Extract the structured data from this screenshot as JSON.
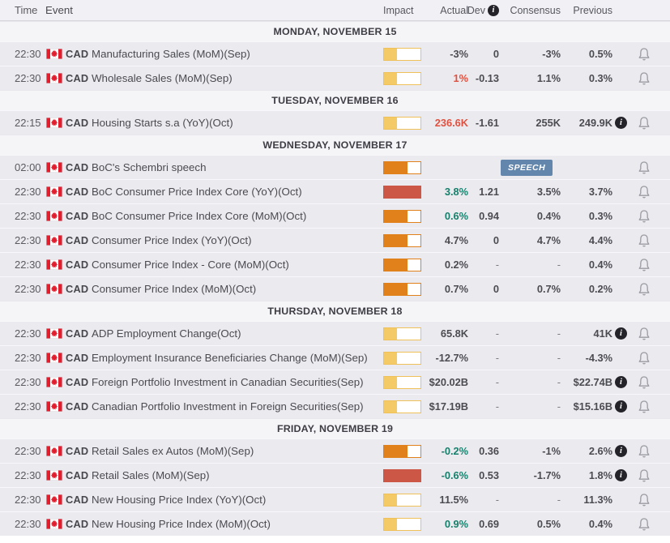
{
  "columns": {
    "time": "Time",
    "event": "Event",
    "impact": "Impact",
    "actual": "Actual",
    "dev": "Dev",
    "consensus": "Consensus",
    "previous": "Previous"
  },
  "icons": {
    "dev_info": "info-icon",
    "previous_info": "info-icon",
    "alert": "bell-icon",
    "flag": "canada-flag-icon",
    "info_glyph": "i"
  },
  "colors": {
    "impact_low_border": "#efc158",
    "impact_low_fill": "#f4ca66",
    "impact_med": "#e0811c",
    "impact_high": "#cd5746",
    "positive": "#17806d",
    "negative": "#e2503f",
    "speech": "#6286ac",
    "row_bg": "#ebebef",
    "day_bg": "#f5f5f8",
    "hdr_bg": "#f1f1f5"
  },
  "groups": [
    {
      "label": "MONDAY, NOVEMBER 15",
      "events": [
        {
          "time": "22:30",
          "currency": "CAD",
          "name": "Manufacturing Sales (MoM)(Sep)",
          "impact": "low",
          "actual": "-3%",
          "actual_color": "neutral",
          "dev": "0",
          "consensus": "-3%",
          "previous": "0.5%",
          "previous_info": false,
          "speech": false
        },
        {
          "time": "22:30",
          "currency": "CAD",
          "name": "Wholesale Sales (MoM)(Sep)",
          "impact": "low",
          "actual": "1%",
          "actual_color": "negative",
          "dev": "-0.13",
          "consensus": "1.1%",
          "previous": "0.3%",
          "previous_info": false,
          "speech": false
        }
      ]
    },
    {
      "label": "TUESDAY, NOVEMBER 16",
      "events": [
        {
          "time": "22:15",
          "currency": "CAD",
          "name": "Housing Starts s.a (YoY)(Oct)",
          "impact": "low",
          "actual": "236.6K",
          "actual_color": "negative",
          "dev": "-1.61",
          "consensus": "255K",
          "previous": "249.9K",
          "previous_info": true,
          "speech": false
        }
      ]
    },
    {
      "label": "WEDNESDAY, NOVEMBER 17",
      "events": [
        {
          "time": "02:00",
          "currency": "CAD",
          "name": "BoC's Schembri speech",
          "impact": "medium",
          "actual": "",
          "actual_color": "neutral",
          "dev": "",
          "consensus": "",
          "previous": "",
          "previous_info": false,
          "speech": true,
          "badge": "SPEECH"
        },
        {
          "time": "22:30",
          "currency": "CAD",
          "name": "BoC Consumer Price Index Core (YoY)(Oct)",
          "impact": "high",
          "actual": "3.8%",
          "actual_color": "positive",
          "dev": "1.21",
          "consensus": "3.5%",
          "previous": "3.7%",
          "previous_info": false,
          "speech": false
        },
        {
          "time": "22:30",
          "currency": "CAD",
          "name": "BoC Consumer Price Index Core (MoM)(Oct)",
          "impact": "medium",
          "actual": "0.6%",
          "actual_color": "positive",
          "dev": "0.94",
          "consensus": "0.4%",
          "previous": "0.3%",
          "previous_info": false,
          "speech": false
        },
        {
          "time": "22:30",
          "currency": "CAD",
          "name": "Consumer Price Index (YoY)(Oct)",
          "impact": "medium",
          "actual": "4.7%",
          "actual_color": "neutral",
          "dev": "0",
          "consensus": "4.7%",
          "previous": "4.4%",
          "previous_info": false,
          "speech": false
        },
        {
          "time": "22:30",
          "currency": "CAD",
          "name": "Consumer Price Index - Core (MoM)(Oct)",
          "impact": "medium",
          "actual": "0.2%",
          "actual_color": "neutral",
          "dev": "-",
          "consensus": "-",
          "previous": "0.4%",
          "previous_info": false,
          "speech": false
        },
        {
          "time": "22:30",
          "currency": "CAD",
          "name": "Consumer Price Index (MoM)(Oct)",
          "impact": "medium",
          "actual": "0.7%",
          "actual_color": "neutral",
          "dev": "0",
          "consensus": "0.7%",
          "previous": "0.2%",
          "previous_info": false,
          "speech": false
        }
      ]
    },
    {
      "label": "THURSDAY, NOVEMBER 18",
      "events": [
        {
          "time": "22:30",
          "currency": "CAD",
          "name": "ADP Employment Change(Oct)",
          "impact": "low",
          "actual": "65.8K",
          "actual_color": "neutral",
          "dev": "-",
          "consensus": "-",
          "previous": "41K",
          "previous_info": true,
          "speech": false
        },
        {
          "time": "22:30",
          "currency": "CAD",
          "name": "Employment Insurance Beneficiaries Change (MoM)(Sep)",
          "impact": "low",
          "actual": "-12.7%",
          "actual_color": "neutral",
          "dev": "-",
          "consensus": "-",
          "previous": "-4.3%",
          "previous_info": false,
          "speech": false
        },
        {
          "time": "22:30",
          "currency": "CAD",
          "name": "Foreign Portfolio Investment in Canadian Securities(Sep)",
          "impact": "low",
          "actual": "$20.02B",
          "actual_color": "neutral",
          "dev": "-",
          "consensus": "-",
          "previous": "$22.74B",
          "previous_info": true,
          "speech": false
        },
        {
          "time": "22:30",
          "currency": "CAD",
          "name": "Canadian Portfolio Investment in Foreign Securities(Sep)",
          "impact": "low",
          "actual": "$17.19B",
          "actual_color": "neutral",
          "dev": "-",
          "consensus": "-",
          "previous": "$15.16B",
          "previous_info": true,
          "speech": false
        }
      ]
    },
    {
      "label": "FRIDAY, NOVEMBER 19",
      "events": [
        {
          "time": "22:30",
          "currency": "CAD",
          "name": "Retail Sales ex Autos (MoM)(Sep)",
          "impact": "medium",
          "actual": "-0.2%",
          "actual_color": "positive",
          "dev": "0.36",
          "consensus": "-1%",
          "previous": "2.6%",
          "previous_info": true,
          "speech": false
        },
        {
          "time": "22:30",
          "currency": "CAD",
          "name": "Retail Sales (MoM)(Sep)",
          "impact": "high",
          "actual": "-0.6%",
          "actual_color": "positive",
          "dev": "0.53",
          "consensus": "-1.7%",
          "previous": "1.8%",
          "previous_info": true,
          "speech": false
        },
        {
          "time": "22:30",
          "currency": "CAD",
          "name": "New Housing Price Index (YoY)(Oct)",
          "impact": "low",
          "actual": "11.5%",
          "actual_color": "neutral",
          "dev": "-",
          "consensus": "-",
          "previous": "11.3%",
          "previous_info": false,
          "speech": false
        },
        {
          "time": "22:30",
          "currency": "CAD",
          "name": "New Housing Price Index (MoM)(Oct)",
          "impact": "low",
          "actual": "0.9%",
          "actual_color": "positive",
          "dev": "0.69",
          "consensus": "0.5%",
          "previous": "0.4%",
          "previous_info": false,
          "speech": false
        }
      ]
    }
  ]
}
